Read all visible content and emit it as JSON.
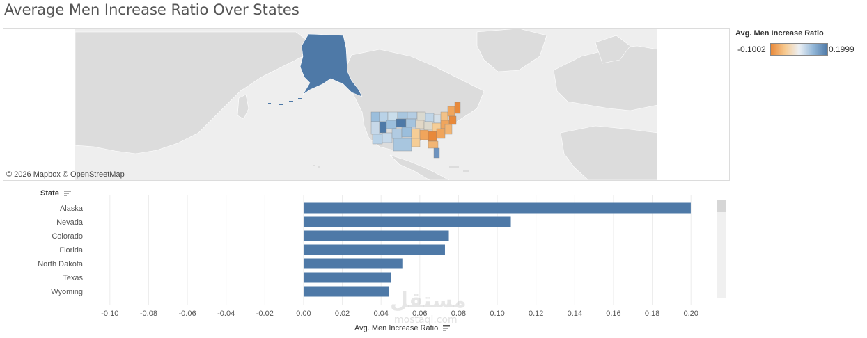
{
  "title": "Average Men Increase Ratio Over States",
  "map": {
    "attribution": "© 2026 Mapbox © OpenStreetMap",
    "highlighted_region": "Alaska"
  },
  "legend": {
    "title": "Avg. Men Increase Ratio",
    "min": "-0.1002",
    "max": "0.1999",
    "colors": {
      "low": "#e8893a",
      "mid": "#ecf0f4",
      "high": "#4e79a7"
    }
  },
  "watermark": {
    "text": "مستقل",
    "sub": "mostaql.com"
  },
  "chart_data": {
    "type": "bar",
    "orientation": "horizontal",
    "row_header": "State",
    "xlabel": "Avg. Men Increase Ratio",
    "categories": [
      "Alaska",
      "Nevada",
      "Colorado",
      "Florida",
      "North Dakota",
      "Texas",
      "Wyoming"
    ],
    "values": [
      0.1999,
      0.107,
      0.075,
      0.073,
      0.051,
      0.045,
      0.044
    ],
    "xlim": [
      -0.11,
      0.21
    ],
    "xticks": [
      "-0.10",
      "-0.08",
      "-0.06",
      "-0.04",
      "-0.02",
      "0.00",
      "0.02",
      "0.04",
      "0.06",
      "0.08",
      "0.10",
      "0.12",
      "0.14",
      "0.16",
      "0.18",
      "0.20"
    ],
    "xtick_values": [
      -0.1,
      -0.08,
      -0.06,
      -0.04,
      -0.02,
      0.0,
      0.02,
      0.04,
      0.06,
      0.08,
      0.1,
      0.12,
      0.14,
      0.16,
      0.18,
      0.2
    ],
    "bar_color": "#4e79a7",
    "grid": true
  }
}
